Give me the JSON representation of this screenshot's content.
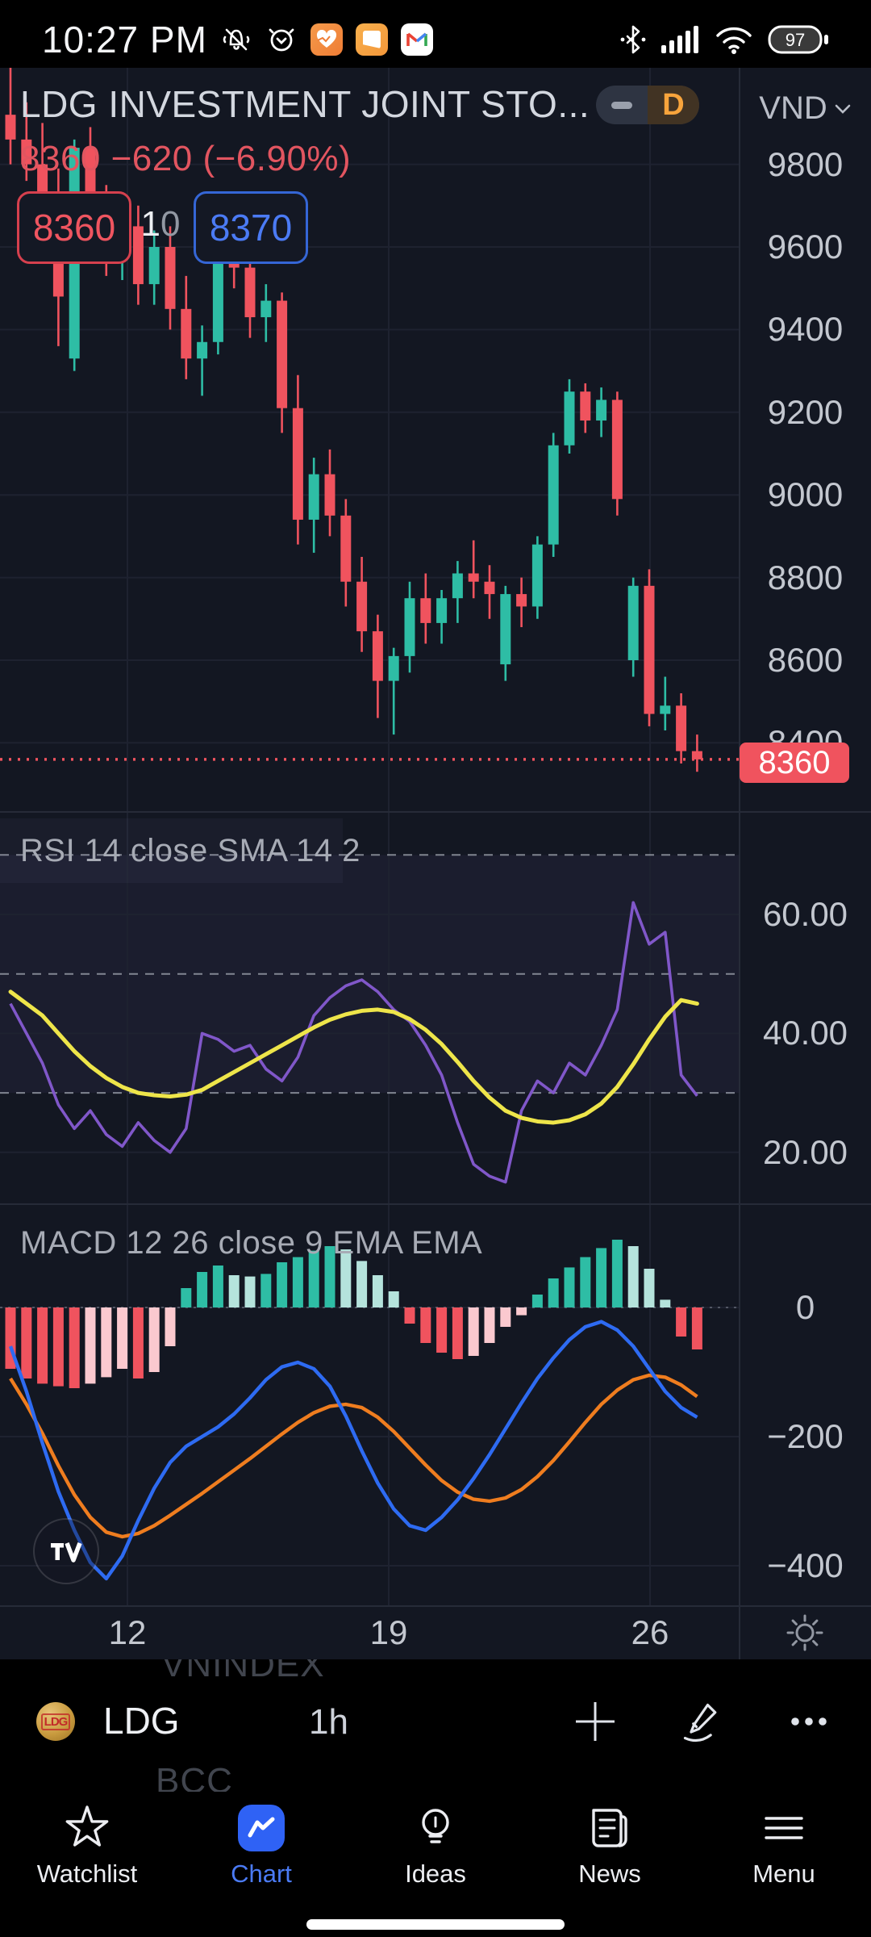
{
  "status_bar": {
    "time": "10:27 PM",
    "battery": "97",
    "icons": [
      "mute-bell",
      "alarm-clock",
      "health-app",
      "notes-app",
      "gmail-app",
      "bluetooth",
      "signal",
      "wifi",
      "battery"
    ]
  },
  "header": {
    "title": "LDG INVESTMENT JOINT STO...",
    "interval_badge": "D",
    "currency": "VND",
    "price_line": "8360  −620 (−6.90%)"
  },
  "trade": {
    "bid": "8360",
    "spread_first": "1",
    "spread_second": "0",
    "ask": "8370"
  },
  "price_axis": {
    "last_price_label": "8360"
  },
  "symbol_bar": {
    "prev_symbol": "VNINDEX",
    "symbol": "LDG",
    "logo_text": "LDG",
    "interval": "1h",
    "next_symbol": "BCC"
  },
  "nav": {
    "items": [
      {
        "label": "Watchlist",
        "icon": "star",
        "active": false
      },
      {
        "label": "Chart",
        "icon": "chart",
        "active": true
      },
      {
        "label": "Ideas",
        "icon": "bulb",
        "active": false
      },
      {
        "label": "News",
        "icon": "news",
        "active": false
      },
      {
        "label": "Menu",
        "icon": "menu",
        "active": false
      }
    ]
  },
  "colors": {
    "background": "#131722",
    "up": "#2ebda5",
    "down": "#f0535e",
    "hist_up": "#2ebda5",
    "hist_up_fade": "#b5e3dc",
    "hist_down": "#f0535e",
    "hist_down_fade": "#fbc9cf",
    "rsi_line": "#8057c9",
    "rsi_sma": "#eee54a",
    "macd_line": "#2e6bf2",
    "macd_signal": "#ef7d1f",
    "accent": "#4b7bf5",
    "last_price_bg": "#f0535e",
    "grid": "#1e2230"
  },
  "chart_data": {
    "type": "candlestick",
    "symbol": "LDG",
    "interval": "1h",
    "currency": "VND",
    "last_price": 8360,
    "change": -620,
    "change_pct": -6.9,
    "x_tick_labels": [
      "12",
      "19",
      "26"
    ],
    "price_ticks": [
      9800,
      9600,
      9400,
      9200,
      9000,
      8800,
      8600,
      8400
    ],
    "candles": [
      [
        9920,
        10040,
        9800,
        9860
      ],
      [
        9860,
        9950,
        9760,
        9800
      ],
      [
        9800,
        9900,
        9690,
        9720
      ],
      [
        9720,
        9790,
        9360,
        9480
      ],
      [
        9330,
        9860,
        9300,
        9840
      ],
      [
        9840,
        9890,
        9650,
        9700
      ],
      [
        9700,
        9750,
        9530,
        9580
      ],
      [
        9580,
        9690,
        9520,
        9650
      ],
      [
        9650,
        9700,
        9460,
        9510
      ],
      [
        9510,
        9640,
        9460,
        9600
      ],
      [
        9600,
        9650,
        9400,
        9450
      ],
      [
        9450,
        9530,
        9280,
        9330
      ],
      [
        9330,
        9410,
        9240,
        9370
      ],
      [
        9370,
        9700,
        9340,
        9670
      ],
      [
        9670,
        9710,
        9500,
        9550
      ],
      [
        9550,
        9590,
        9380,
        9430
      ],
      [
        9430,
        9510,
        9370,
        9470
      ],
      [
        9470,
        9490,
        9150,
        9210
      ],
      [
        9210,
        9290,
        8880,
        8940
      ],
      [
        8940,
        9090,
        8860,
        9050
      ],
      [
        9050,
        9110,
        8900,
        8950
      ],
      [
        8950,
        8990,
        8730,
        8790
      ],
      [
        8790,
        8850,
        8620,
        8670
      ],
      [
        8670,
        8710,
        8460,
        8550
      ],
      [
        8550,
        8630,
        8420,
        8610
      ],
      [
        8610,
        8790,
        8570,
        8750
      ],
      [
        8750,
        8810,
        8640,
        8690
      ],
      [
        8690,
        8770,
        8640,
        8750
      ],
      [
        8750,
        8840,
        8690,
        8810
      ],
      [
        8810,
        8890,
        8750,
        8790
      ],
      [
        8790,
        8830,
        8700,
        8760
      ],
      [
        8590,
        8780,
        8550,
        8760
      ],
      [
        8760,
        8800,
        8680,
        8730
      ],
      [
        8730,
        8900,
        8700,
        8880
      ],
      [
        8880,
        9150,
        8850,
        9120
      ],
      [
        9120,
        9280,
        9100,
        9250
      ],
      [
        9250,
        9270,
        9150,
        9180
      ],
      [
        9180,
        9260,
        9140,
        9230
      ],
      [
        9230,
        9250,
        8950,
        8990
      ],
      [
        8600,
        8800,
        8560,
        8780
      ],
      [
        8780,
        8820,
        8440,
        8470
      ],
      [
        8470,
        8560,
        8430,
        8490
      ],
      [
        8490,
        8520,
        8350,
        8380
      ],
      [
        8380,
        8420,
        8330,
        8360
      ]
    ],
    "indicators": {
      "rsi": {
        "title": "RSI 14 close SMA 14 2",
        "levels": [
          70,
          50,
          30
        ],
        "ticks": [
          60,
          40,
          20
        ],
        "rsi": [
          45,
          40,
          35,
          28,
          24,
          27,
          23,
          21,
          25,
          22,
          20,
          24,
          40,
          39,
          37,
          38,
          34,
          32,
          36,
          43,
          46,
          48,
          49,
          47,
          44,
          42,
          38,
          33,
          25,
          18,
          16,
          15,
          27,
          32,
          30,
          35,
          33,
          38,
          44,
          62,
          55,
          57,
          33,
          29.5
        ],
        "sma": [
          47,
          45,
          43,
          40,
          37,
          34.5,
          32.5,
          31,
          30,
          29.6,
          29.4,
          29.7,
          30.5,
          32,
          33.5,
          35,
          36.5,
          38,
          39.5,
          41,
          42.3,
          43.2,
          43.8,
          44,
          43.6,
          42.4,
          40.6,
          38.2,
          35.2,
          32,
          29.2,
          27,
          25.8,
          25.2,
          25,
          25.4,
          26.4,
          28.2,
          31,
          34.8,
          39,
          42.8,
          45.6,
          45
        ]
      },
      "macd": {
        "title": "MACD 12 26 close 9 EMA EMA",
        "ticks": [
          0,
          -200,
          -400
        ],
        "histogram": [
          -95,
          -110,
          -118,
          -122,
          -125,
          -118,
          -108,
          -95,
          -110,
          -100,
          -60,
          30,
          55,
          65,
          50,
          48,
          52,
          70,
          78,
          88,
          95,
          90,
          72,
          50,
          25,
          -25,
          -55,
          -70,
          -80,
          -75,
          -55,
          -30,
          -12,
          20,
          45,
          62,
          78,
          92,
          105,
          95,
          60,
          12,
          -45,
          -65
        ],
        "macd": [
          -60,
          -130,
          -210,
          -285,
          -345,
          -395,
          -420,
          -385,
          -330,
          -280,
          -240,
          -215,
          -200,
          -185,
          -165,
          -140,
          -112,
          -92,
          -85,
          -95,
          -122,
          -168,
          -222,
          -272,
          -312,
          -338,
          -345,
          -325,
          -298,
          -265,
          -228,
          -188,
          -148,
          -110,
          -78,
          -50,
          -30,
          -22,
          -35,
          -60,
          -95,
          -130,
          -155,
          -170
        ],
        "signal": [
          -110,
          -150,
          -195,
          -245,
          -290,
          -325,
          -348,
          -355,
          -350,
          -338,
          -322,
          -305,
          -288,
          -270,
          -252,
          -234,
          -215,
          -196,
          -178,
          -163,
          -153,
          -150,
          -155,
          -170,
          -192,
          -218,
          -244,
          -268,
          -286,
          -297,
          -300,
          -295,
          -282,
          -262,
          -237,
          -208,
          -178,
          -150,
          -128,
          -112,
          -105,
          -108,
          -120,
          -138
        ]
      }
    }
  }
}
